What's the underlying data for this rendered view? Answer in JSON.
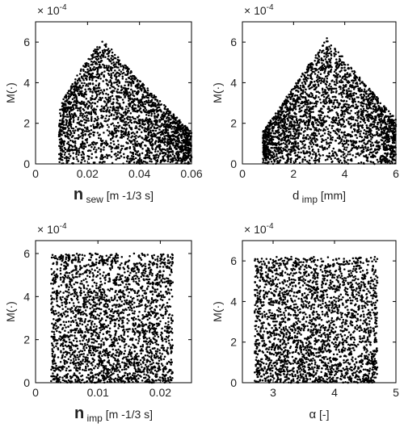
{
  "chart_data": [
    {
      "type": "scatter",
      "xlabel_main": "n",
      "xlabel_sub": "sew",
      "xlabel_unit": "[m -1/3 s]",
      "ylabel": "M(·)",
      "multiplier": "× 10",
      "multiplier_exp": "-4",
      "xlim": [
        0,
        0.06
      ],
      "ylim": [
        0,
        0.0007
      ],
      "xticks": [
        "0",
        "0.02",
        "0.04",
        "0.06"
      ],
      "yticks": [
        "0",
        "2",
        "4",
        "6"
      ],
      "grid": false,
      "series": [
        {
          "x_range": [
            0.009,
            0.06
          ],
          "peak_x": 0.026,
          "peak_y": 0.00062,
          "shape": "envelope_left_skew"
        }
      ]
    },
    {
      "type": "scatter",
      "xlabel_main": "d",
      "xlabel_sub": "imp",
      "xlabel_unit": "[mm]",
      "ylabel": "M(·)",
      "multiplier": "× 10",
      "multiplier_exp": "-4",
      "xlim": [
        0,
        6
      ],
      "ylim": [
        0,
        0.0007
      ],
      "xticks": [
        "0",
        "2",
        "4",
        "6"
      ],
      "yticks": [
        "0",
        "2",
        "4",
        "6"
      ],
      "grid": false,
      "series": [
        {
          "x_range": [
            0.8,
            6.0
          ],
          "peak_x": 3.3,
          "peak_y": 0.00062,
          "shape": "envelope_peak_mid"
        }
      ]
    },
    {
      "type": "scatter",
      "xlabel_main": "n",
      "xlabel_sub": "imp",
      "xlabel_unit": "[m -1/3 s]",
      "ylabel": "M(·)",
      "multiplier": "× 10",
      "multiplier_exp": "-4",
      "xlim": [
        0,
        0.025
      ],
      "ylim": [
        0,
        0.00066
      ],
      "xticks": [
        "0",
        "0.01",
        "0.02"
      ],
      "yticks": [
        "0",
        "2",
        "4",
        "6"
      ],
      "grid": false,
      "series": [
        {
          "x_range": [
            0.0025,
            0.022
          ],
          "y_max": 0.0006,
          "shape": "uniform_band"
        }
      ]
    },
    {
      "type": "scatter",
      "xlabel_main": "α",
      "xlabel_sub": "",
      "xlabel_unit": "[-]",
      "ylabel": "M(·)",
      "multiplier": "× 10",
      "multiplier_exp": "-4",
      "xlim": [
        2.5,
        5
      ],
      "ylim": [
        0,
        0.0007
      ],
      "xticks": [
        "3",
        "4",
        "5"
      ],
      "yticks": [
        "0",
        "2",
        "4",
        "6"
      ],
      "grid": false,
      "series": [
        {
          "x_range": [
            2.7,
            4.7
          ],
          "y_max": 0.00062,
          "shape": "uniform_band"
        }
      ]
    }
  ]
}
